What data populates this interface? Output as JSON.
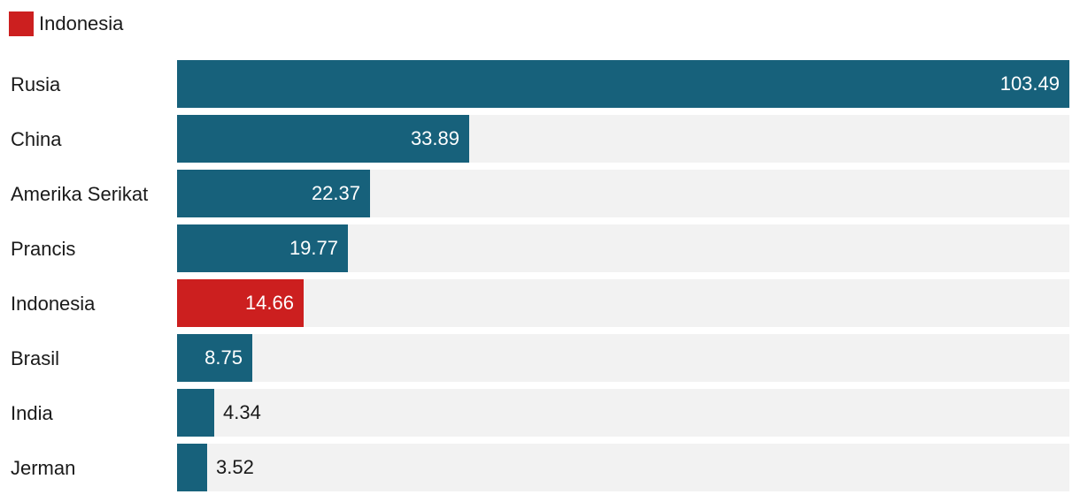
{
  "legend": {
    "label": "Indonesia",
    "color": "#cc1f1f"
  },
  "colors": {
    "default_bar": "#17617b",
    "highlight_bar": "#cc1f1f",
    "track": "#f2f2f2"
  },
  "chart_data": {
    "type": "bar",
    "orientation": "horizontal",
    "categories": [
      "Rusia",
      "China",
      "Amerika Serikat",
      "Prancis",
      "Indonesia",
      "Brasil",
      "India",
      "Jerman"
    ],
    "values": [
      103.49,
      33.89,
      22.37,
      19.77,
      14.66,
      8.75,
      4.34,
      3.52
    ],
    "value_labels": [
      "103.49",
      "33.89",
      "22.37",
      "19.77",
      "14.66",
      "8.75",
      "4.34",
      "3.52"
    ],
    "highlight": "Indonesia",
    "xlim": [
      0,
      103.49
    ],
    "grid": false,
    "legend_position": "top-left"
  }
}
